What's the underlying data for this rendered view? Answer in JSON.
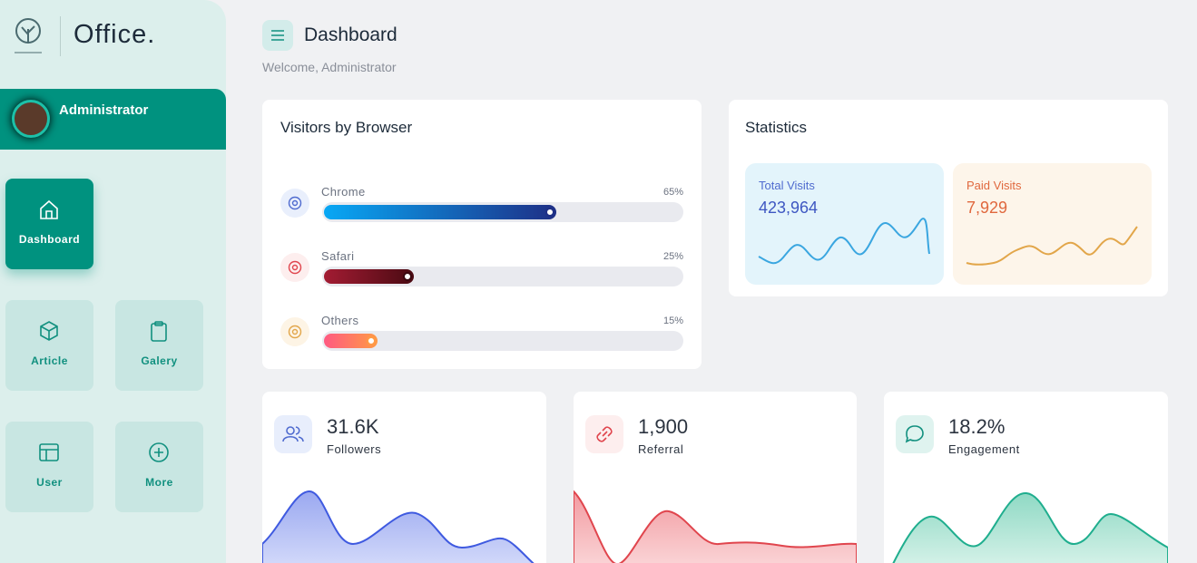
{
  "sidebar": {
    "brand": "Office.",
    "user": "Administrator",
    "menu": [
      "Dashboard",
      "Article",
      "Galery",
      "User",
      "More"
    ]
  },
  "header": {
    "title": "Dashboard",
    "subtitle": "Welcome, Administrator"
  },
  "browsers": {
    "title": "Visitors by Browser",
    "items": [
      {
        "name": "Chrome",
        "value": 65,
        "value_label": "65%"
      },
      {
        "name": "Safari",
        "value": 25,
        "value_label": "25%"
      },
      {
        "name": "Others",
        "value": 15,
        "value_label": "15%"
      }
    ]
  },
  "statistics": {
    "title": "Statistics",
    "cards": [
      {
        "label": "Total Visits",
        "value": "423,964"
      },
      {
        "label": "Paid Visits",
        "value": "7,929"
      }
    ]
  },
  "metrics": [
    {
      "value": "31.6K",
      "label": "Followers"
    },
    {
      "value": "1,900",
      "label": "Referral"
    },
    {
      "value": "18.2%",
      "label": "Engagement"
    }
  ]
}
